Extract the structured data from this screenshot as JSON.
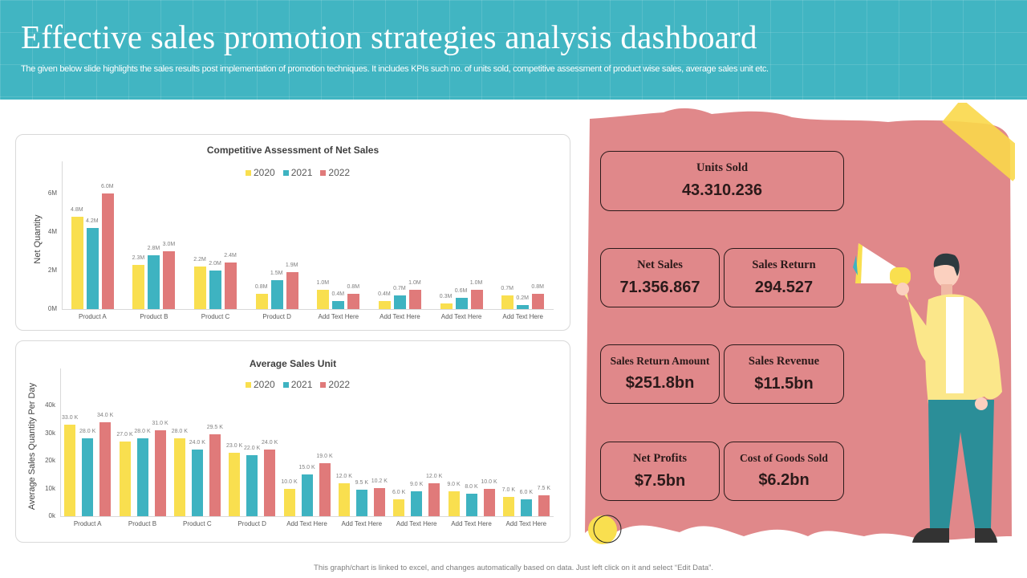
{
  "header": {
    "title": "Effective sales promotion strategies analysis dashboard",
    "subtitle": "The given below slide highlights the sales results post implementation of promotion techniques. It includes KPIs such no. of units sold, competitive assessment of product wise sales, average sales unit etc."
  },
  "colors": {
    "c2020": "#f9df4f",
    "c2021": "#3eb3c1",
    "c2022": "#e07a7a",
    "paper": "#e0888a",
    "header": "#41b5c2"
  },
  "chart_data": [
    {
      "type": "bar",
      "title": "Competitive Assessment of Net Sales",
      "xlabel": "",
      "ylabel": "Net Quantity",
      "ylim": [
        0,
        7.5
      ],
      "yticks": [
        "0M",
        "2M",
        "4M",
        "6M"
      ],
      "legend": [
        "2020",
        "2021",
        "2022"
      ],
      "legend_position": "top",
      "categories": [
        "Product A",
        "Product B",
        "Product C",
        "Product D",
        "Add Text Here",
        "Add Text Here",
        "Add Text Here",
        "Add Text Here"
      ],
      "series": [
        {
          "name": "2020",
          "values": [
            4.8,
            2.3,
            2.2,
            0.8,
            1.0,
            0.4,
            0.3,
            0.7
          ],
          "labels": [
            "4.8M",
            "2.3M",
            "2.2M",
            "0.8M",
            "1.0M",
            "0.4M",
            "0.3M",
            "0.7M"
          ]
        },
        {
          "name": "2021",
          "values": [
            4.2,
            2.8,
            2.0,
            1.5,
            0.4,
            0.7,
            0.6,
            0.2
          ],
          "labels": [
            "4.2M",
            "2.8M",
            "2.0M",
            "1.5M",
            "0.4M",
            "0.7M",
            "0.6M",
            "0.2M"
          ]
        },
        {
          "name": "2022",
          "values": [
            6.0,
            3.0,
            2.4,
            1.9,
            0.8,
            1.0,
            1.0,
            0.8
          ],
          "labels": [
            "6.0M",
            "3.0M",
            "2.4M",
            "1.9M",
            "0.8M",
            "1.0M",
            "1.0M",
            "0.8M"
          ]
        }
      ]
    },
    {
      "type": "bar",
      "title": "Average  Sales Unit",
      "xlabel": "",
      "ylabel": "Average Sales Quantity Per Day",
      "ylim": [
        0,
        50
      ],
      "yticks": [
        "0k",
        "10k",
        "20k",
        "30k",
        "40k"
      ],
      "legend": [
        "2020",
        "2021",
        "2022"
      ],
      "legend_position": "top",
      "categories": [
        "Product A",
        "Product B",
        "Product C",
        "Product D",
        "Add Text Here",
        "Add Text Here",
        "Add Text Here",
        "Add Text Here",
        "Add Text Here"
      ],
      "series": [
        {
          "name": "2020",
          "values": [
            33.0,
            27.0,
            28.0,
            23.0,
            10.0,
            12.0,
            6.0,
            9.0,
            7.0
          ],
          "labels": [
            "33.0 K",
            "27.0 K",
            "28.0 K",
            "23.0 K",
            "10.0 K",
            "12.0 K",
            "6.0 K",
            "9.0 K",
            "7.0 K"
          ]
        },
        {
          "name": "2021",
          "values": [
            28.0,
            28.0,
            24.0,
            22.0,
            15.0,
            9.5,
            9.0,
            8.0,
            6.0
          ],
          "labels": [
            "28.0 K",
            "28.0 K",
            "24.0 K",
            "22.0 K",
            "15.0 K",
            "9.5 K",
            "9.0 K",
            "8.0 K",
            "6.0 K"
          ]
        },
        {
          "name": "2022",
          "values": [
            34.0,
            31.0,
            29.5,
            24.0,
            19.0,
            10.2,
            12.0,
            10.0,
            7.5
          ],
          "labels": [
            "34.0 K",
            "31.0 K",
            "29.5 K",
            "24.0 K",
            "19.0 K",
            "10.2 K",
            "12.0 K",
            "10.0 K",
            "7.5 K"
          ]
        }
      ]
    }
  ],
  "kpis": [
    {
      "label": "Units Sold",
      "value": "43.310.236"
    },
    {
      "label": "Net Sales",
      "value": "71.356.867"
    },
    {
      "label": "Sales Return",
      "value": "294.527"
    },
    {
      "label": "Sales Return Amount",
      "value": "$251.8bn"
    },
    {
      "label": "Sales Revenue",
      "value": "$11.5bn"
    },
    {
      "label": "Net Profits",
      "value": "$7.5bn"
    },
    {
      "label": "Cost of Goods Sold",
      "value": "$6.2bn"
    }
  ],
  "footer": {
    "note": "This graph/chart is linked to excel, and changes automatically based on data. Just left click on it and select “Edit Data”."
  }
}
